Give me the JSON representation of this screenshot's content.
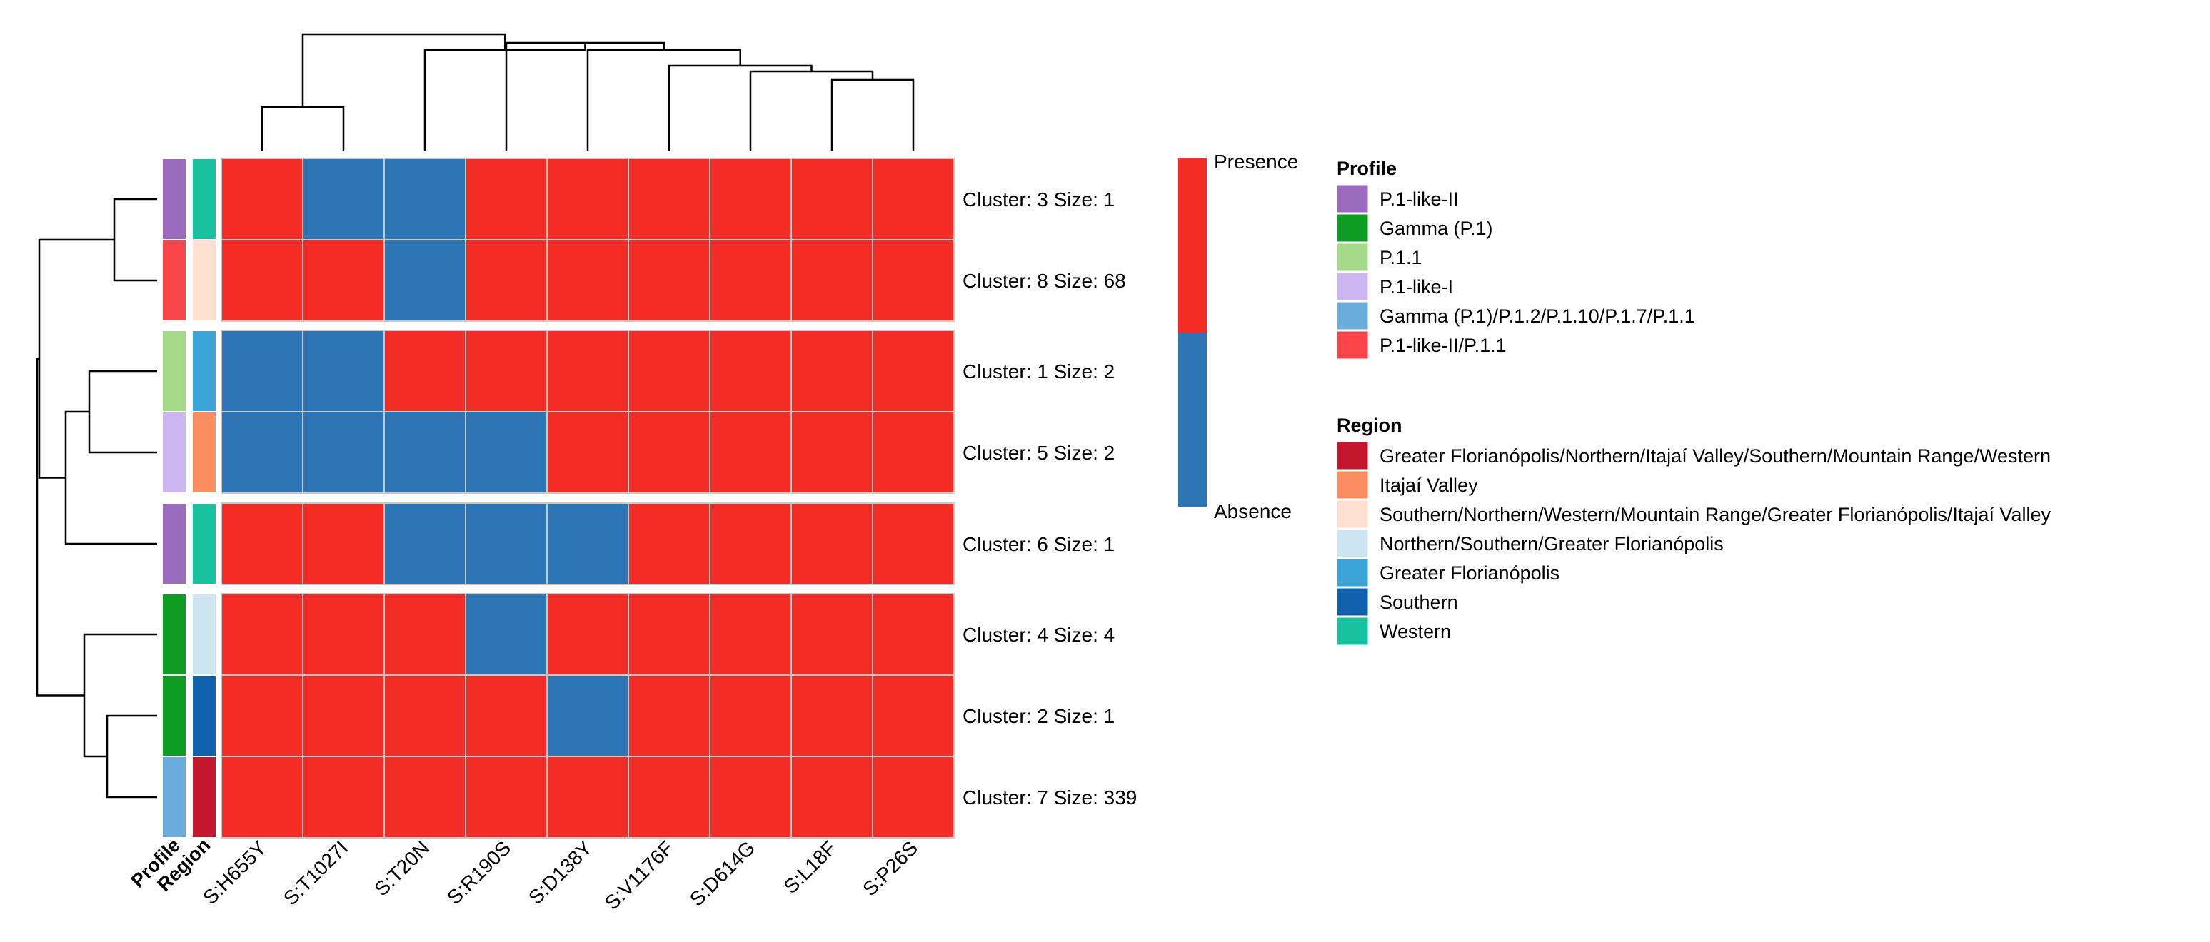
{
  "chart_data": {
    "type": "heatmap",
    "columns": [
      "S:H655Y",
      "S:T1027I",
      "S:T20N",
      "S:R190S",
      "S:D138Y",
      "S:V1176F",
      "S:D614G",
      "S:L18F",
      "S:P26S"
    ],
    "rows": [
      {
        "label": "Cluster: 3 Size: 1",
        "profile": "P.1-like-II",
        "region": "Western",
        "values": [
          1,
          0,
          0,
          1,
          1,
          1,
          1,
          1,
          1
        ]
      },
      {
        "label": "Cluster: 8 Size: 68",
        "profile": "P.1-like-II/P.1.1",
        "region": "Southern/Northern/Western/Mountain Range/Greater Florianópolis/Itajaí Valley",
        "values": [
          1,
          1,
          0,
          1,
          1,
          1,
          1,
          1,
          1
        ]
      },
      {
        "label": "Cluster: 1 Size: 2",
        "profile": "P.1.1",
        "region": "Greater Florianópolis",
        "values": [
          0,
          0,
          1,
          1,
          1,
          1,
          1,
          1,
          1
        ]
      },
      {
        "label": "Cluster: 5 Size: 2",
        "profile": "P.1-like-I",
        "region": "Itajaí Valley",
        "values": [
          0,
          0,
          0,
          0,
          1,
          1,
          1,
          1,
          1
        ]
      },
      {
        "label": "Cluster: 6 Size: 1",
        "profile": "P.1-like-II",
        "region": "Western",
        "values": [
          1,
          1,
          0,
          0,
          0,
          1,
          1,
          1,
          1
        ]
      },
      {
        "label": "Cluster: 4 Size: 4",
        "profile": "Gamma (P.1)",
        "region": "Northern/Southern/Greater Florianópolis",
        "values": [
          1,
          1,
          1,
          0,
          1,
          1,
          1,
          1,
          1
        ]
      },
      {
        "label": "Cluster: 2 Size: 1",
        "profile": "Gamma (P.1)",
        "region": "Southern",
        "values": [
          1,
          1,
          1,
          1,
          0,
          1,
          1,
          1,
          1
        ]
      },
      {
        "label": "Cluster: 7 Size: 339",
        "profile": "Gamma (P.1)/P.1.2/P.1.10/P.1.7/P.1.1",
        "region": "Greater Florianópolis/Northern/Itajaí Valley/Southern/Mountain Range/Western",
        "values": [
          1,
          1,
          1,
          1,
          1,
          1,
          1,
          1,
          1
        ]
      }
    ],
    "row_groups": [
      [
        0,
        1
      ],
      [
        2,
        3
      ],
      [
        4
      ],
      [
        5,
        6,
        7
      ]
    ],
    "value_legend": {
      "1": "Presence",
      "0": "Absence"
    },
    "colors": {
      "presence": "#f32c25",
      "absence": "#2e75b6",
      "grid": "#c9c9c9"
    },
    "annotation_tracks": [
      "Profile",
      "Region"
    ],
    "profile_legend": {
      "title": "Profile",
      "items": [
        {
          "label": "P.1-like-II",
          "color": "#9b6bbd"
        },
        {
          "label": "Gamma (P.1)",
          "color": "#0f9c22"
        },
        {
          "label": "P.1.1",
          "color": "#a3d987"
        },
        {
          "label": "P.1-like-I",
          "color": "#cdb5f2"
        },
        {
          "label": "Gamma (P.1)/P.1.2/P.1.10/P.1.7/P.1.1",
          "color": "#6aaddc"
        },
        {
          "label": "P.1-like-II/P.1.1",
          "color": "#f9454a"
        }
      ]
    },
    "region_legend": {
      "title": "Region",
      "items": [
        {
          "label": "Greater Florianópolis/Northern/Itajaí Valley/Southern/Mountain Range/Western",
          "color": "#c4172d"
        },
        {
          "label": "Itajaí Valley",
          "color": "#fb8c5f"
        },
        {
          "label": "Southern/Northern/Western/Mountain Range/Greater Florianópolis/Itajaí Valley",
          "color": "#fde0d0"
        },
        {
          "label": "Northern/Southern/Greater Florianópolis",
          "color": "#cde5f1"
        },
        {
          "label": "Greater Florianópolis",
          "color": "#3aa4d8"
        },
        {
          "label": "Southern",
          "color": "#0f60ad"
        },
        {
          "label": "Western",
          "color": "#18c2a0"
        }
      ]
    }
  }
}
